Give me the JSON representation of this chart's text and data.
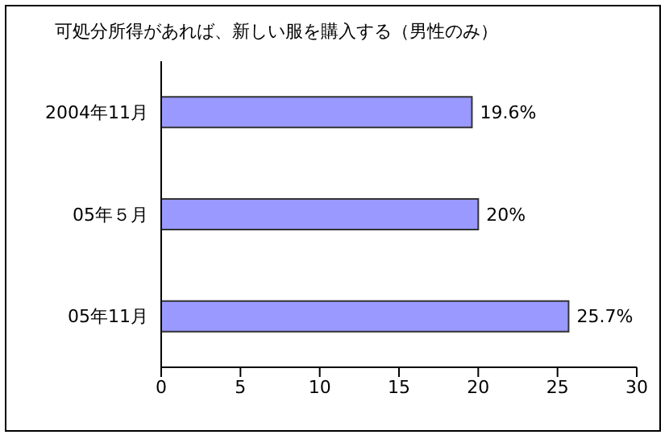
{
  "chart_data": {
    "type": "bar",
    "orientation": "horizontal",
    "title": "可処分所得があれば、新しい服を購入する（男性のみ）",
    "categories": [
      "2004年11月",
      "05年５月",
      "05年11月"
    ],
    "values": [
      19.6,
      20,
      25.7
    ],
    "value_labels": [
      "19.6%",
      "20%",
      "25.7%"
    ],
    "color": "#9999ff",
    "xlim": [
      0,
      30
    ],
    "xticks": [
      0,
      5,
      10,
      15,
      20,
      25,
      30
    ],
    "grid": false
  }
}
